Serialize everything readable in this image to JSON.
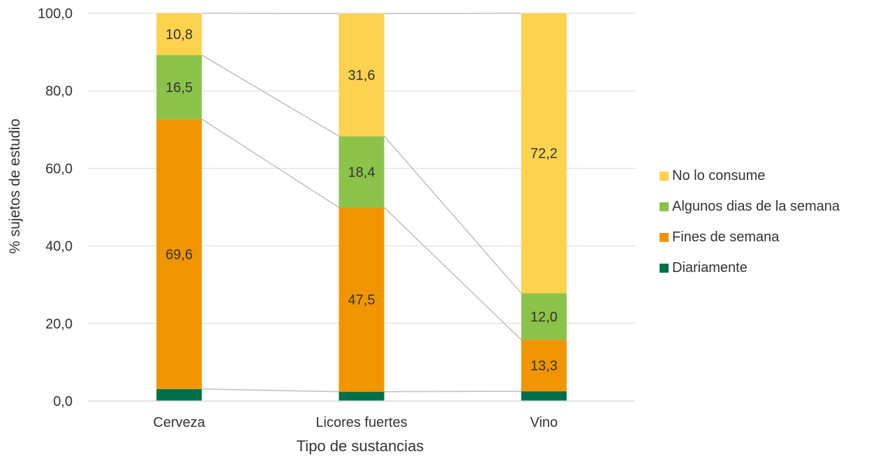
{
  "chart_data": {
    "type": "bar",
    "stacked": true,
    "categories": [
      "Cerveza",
      "Licores fuertes",
      "Vino"
    ],
    "series": [
      {
        "name": "Diariamente",
        "color": "#00704A",
        "values": [
          3.1,
          2.4,
          2.5
        ]
      },
      {
        "name": "Fines de semana",
        "color": "#F09500",
        "values": [
          69.6,
          47.5,
          13.3
        ]
      },
      {
        "name": "Algunos dias de la semana",
        "color": "#8BC34A",
        "values": [
          16.5,
          18.4,
          12.0
        ]
      },
      {
        "name": "No lo consume",
        "color": "#FCD24F",
        "values": [
          10.8,
          31.6,
          72.2
        ]
      }
    ],
    "data_labels": {
      "Diariamente": [
        "",
        "",
        ""
      ],
      "Fines de semana": [
        "69,6",
        "47,5",
        "13,3"
      ],
      "Algunos dias de la semana": [
        "16,5",
        "18,4",
        "12,0"
      ],
      "No lo consume": [
        "10,8",
        "31,6",
        "72,2"
      ]
    },
    "title": "",
    "xlabel": "Tipo de sustancias",
    "ylabel": "% sujetos de estudio",
    "ylim": [
      0,
      100
    ],
    "yticks": [
      "0,0",
      "20,0",
      "40,0",
      "60,0",
      "80,0",
      "100,0"
    ],
    "grid": true,
    "series_lines": true,
    "legend_position": "right"
  }
}
